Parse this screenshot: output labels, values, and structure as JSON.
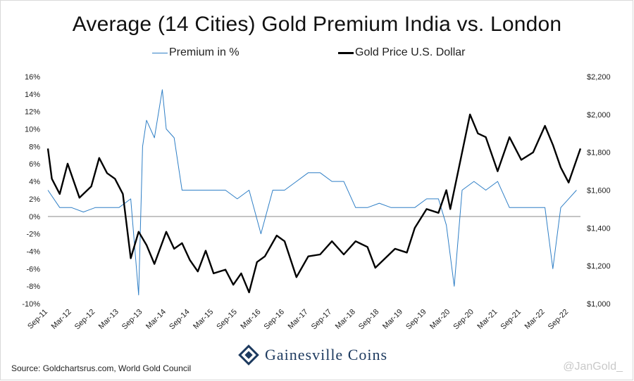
{
  "chart_data": {
    "type": "line",
    "title": "Average (14 Cities) Gold Premium India vs. London",
    "xlabel": "",
    "ylabel": "",
    "x_ticks": [
      "Sep-11",
      "Mar-12",
      "Sep-12",
      "Mar-13",
      "Sep-13",
      "Mar-14",
      "Sep-14",
      "Mar-15",
      "Sep-15",
      "Mar-16",
      "Sep-16",
      "Mar-17",
      "Sep-17",
      "Mar-18",
      "Sep-18",
      "Mar-19",
      "Sep-19",
      "Mar-20",
      "Sep-20",
      "Mar-21",
      "Sep-21",
      "Mar-22",
      "Sep-22"
    ],
    "y_left": {
      "ticks": [
        "16%",
        "14%",
        "12%",
        "10%",
        "8%",
        "6%",
        "4%",
        "2%",
        "0%",
        "-2%",
        "-4%",
        "-6%",
        "-8%",
        "-10%"
      ],
      "ylim": [
        -10,
        16
      ]
    },
    "y_right": {
      "ticks": [
        "$2,200",
        "$2,000",
        "$1,800",
        "$1,600",
        "$1,400",
        "$1,200",
        "$1,000"
      ],
      "ylim": [
        1000,
        2200
      ]
    },
    "legend_position": "top",
    "grid": false,
    "series": [
      {
        "name": "Premium in %",
        "axis": "left",
        "color": "#2f7fc6",
        "x": [
          "Sep-11",
          "Dec-11",
          "Mar-12",
          "Jun-12",
          "Sep-12",
          "Dec-12",
          "Mar-13",
          "Jun-13",
          "Aug-13",
          "Sep-13",
          "Oct-13",
          "Dec-13",
          "Feb-14",
          "Mar-14",
          "May-14",
          "Jul-14",
          "Sep-14",
          "Dec-14",
          "Mar-15",
          "Jun-15",
          "Sep-15",
          "Dec-15",
          "Mar-16",
          "Jun-16",
          "Sep-16",
          "Dec-16",
          "Mar-17",
          "Jun-17",
          "Sep-17",
          "Dec-17",
          "Mar-18",
          "Jun-18",
          "Sep-18",
          "Dec-18",
          "Mar-19",
          "Jun-19",
          "Sep-19",
          "Dec-19",
          "Feb-20",
          "Apr-20",
          "Jun-20",
          "Sep-20",
          "Dec-20",
          "Mar-21",
          "Jun-21",
          "Sep-21",
          "Dec-21",
          "Mar-22",
          "May-22",
          "Jul-22",
          "Sep-22",
          "Nov-22"
        ],
        "values": [
          3,
          1,
          1,
          0.5,
          1,
          1,
          1,
          2,
          -9,
          8,
          11,
          9,
          14.5,
          10,
          9,
          3,
          3,
          3,
          3,
          3,
          2,
          3,
          -2,
          3,
          3,
          4,
          5,
          5,
          4,
          4,
          1,
          1,
          1.5,
          1,
          1,
          1,
          2,
          2,
          -1,
          -8,
          3,
          4,
          3,
          4,
          1,
          1,
          1,
          1,
          -6,
          1,
          2,
          3
        ]
      },
      {
        "name": "Gold Price U.S. Dollar",
        "axis": "right",
        "color": "#000000",
        "x": [
          "Sep-11",
          "Oct-11",
          "Dec-11",
          "Feb-12",
          "May-12",
          "Aug-12",
          "Oct-12",
          "Dec-12",
          "Feb-13",
          "Apr-13",
          "Jun-13",
          "Aug-13",
          "Oct-13",
          "Dec-13",
          "Mar-14",
          "May-14",
          "Jul-14",
          "Sep-14",
          "Nov-14",
          "Jan-15",
          "Mar-15",
          "Jun-15",
          "Aug-15",
          "Oct-15",
          "Dec-15",
          "Feb-16",
          "Apr-16",
          "Jul-16",
          "Sep-16",
          "Dec-16",
          "Mar-17",
          "Jun-17",
          "Sep-17",
          "Dec-17",
          "Mar-18",
          "Jun-18",
          "Aug-18",
          "Oct-18",
          "Jan-19",
          "Apr-19",
          "Jun-19",
          "Sep-19",
          "Dec-19",
          "Feb-20",
          "Mar-20",
          "May-20",
          "Aug-20",
          "Oct-20",
          "Dec-20",
          "Mar-21",
          "Jun-21",
          "Sep-21",
          "Dec-21",
          "Mar-22",
          "May-22",
          "Jul-22",
          "Sep-22",
          "Nov-22",
          "Dec-22"
        ],
        "values": [
          1820,
          1660,
          1580,
          1740,
          1560,
          1620,
          1770,
          1690,
          1660,
          1580,
          1240,
          1380,
          1310,
          1210,
          1380,
          1290,
          1320,
          1230,
          1170,
          1280,
          1160,
          1180,
          1100,
          1160,
          1060,
          1220,
          1250,
          1360,
          1330,
          1140,
          1250,
          1260,
          1330,
          1260,
          1330,
          1300,
          1190,
          1230,
          1290,
          1270,
          1400,
          1500,
          1480,
          1600,
          1500,
          1700,
          2000,
          1900,
          1880,
          1700,
          1880,
          1760,
          1800,
          1940,
          1840,
          1720,
          1640,
          1760,
          1820
        ]
      }
    ]
  },
  "footer": {
    "source": "Source: Goldchartsrus.com, World Gold Council",
    "logo_text": "Gainesville Coins",
    "watermark": "@JanGold_"
  }
}
